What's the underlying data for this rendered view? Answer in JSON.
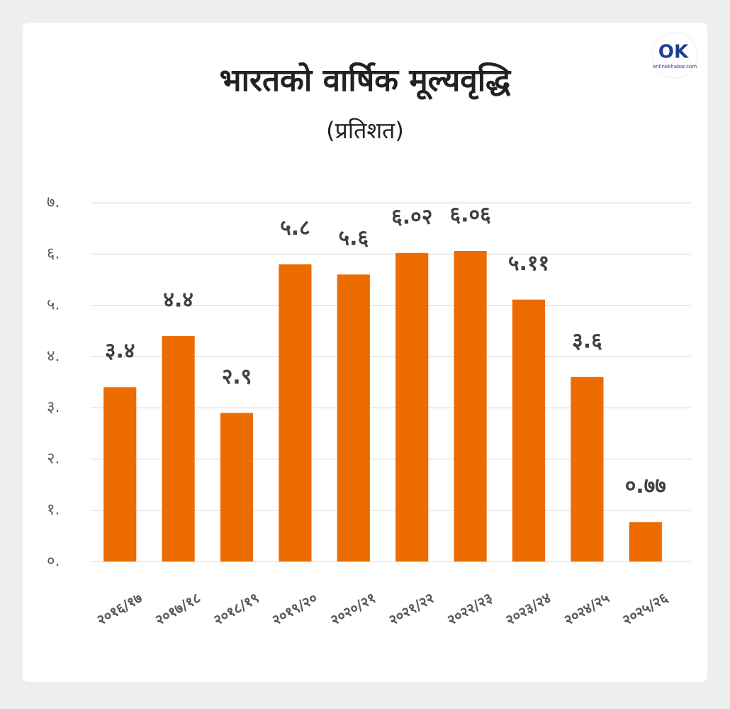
{
  "chart_data": {
    "type": "bar",
    "title": "भारतको वार्षिक मूल्यवृद्धि",
    "subtitle": "(प्रतिशत)",
    "logo": {
      "mark": "OK",
      "text": "onlinekhabar.com"
    },
    "categories": [
      "२०१६/१७",
      "२०१७/१८",
      "२०१८/१९",
      "२०१९/२०",
      "२०२०/२१",
      "२०२१/२२",
      "२०२२/२३",
      "२०२३/२४",
      "२०२४/२५",
      "२०२५/२६"
    ],
    "values": [
      3.4,
      4.4,
      2.9,
      5.8,
      5.6,
      6.02,
      6.06,
      5.11,
      3.6,
      0.77
    ],
    "value_labels": [
      "३.४",
      "४.४",
      "२.९",
      "५.८",
      "५.६",
      "६.०२",
      "६.०६",
      "५.११",
      "३.६",
      "०.७७"
    ],
    "color": "#ec6c00",
    "ylim": [
      0,
      7
    ],
    "yticks": [
      {
        "value": 0,
        "label": "०."
      },
      {
        "value": 1,
        "label": "१."
      },
      {
        "value": 2,
        "label": "२."
      },
      {
        "value": 3,
        "label": "३."
      },
      {
        "value": 4,
        "label": "४."
      },
      {
        "value": 5,
        "label": "५."
      },
      {
        "value": 6,
        "label": "६."
      },
      {
        "value": 7,
        "label": "७."
      }
    ],
    "grid": true
  }
}
